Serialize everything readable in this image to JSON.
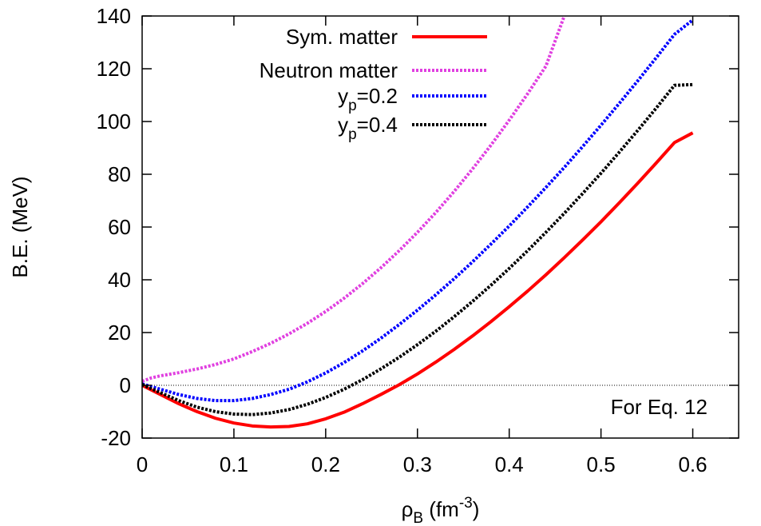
{
  "chart_data": {
    "type": "line",
    "title": "",
    "xlabel": {
      "main": "ρ",
      "sub": "B",
      "unit_prefix": " (fm",
      "sup": "-3",
      "unit_suffix": ")"
    },
    "ylabel": "B.E. (MeV)",
    "xlim": [
      0,
      0.65
    ],
    "ylim": [
      -20,
      140
    ],
    "xticks": [
      0,
      0.1,
      0.2,
      0.3,
      0.4,
      0.5,
      0.6
    ],
    "xtick_labels": [
      "0",
      "0.1",
      "0.2",
      "0.3",
      "0.4",
      "0.5",
      "0.6"
    ],
    "yticks": [
      -20,
      0,
      20,
      40,
      60,
      80,
      100,
      120,
      140
    ],
    "ytick_labels": [
      "-20",
      "0",
      "20",
      "40",
      "60",
      "80",
      "100",
      "120",
      "140"
    ],
    "grid": false,
    "legend_position": "top-left",
    "annotation": "For Eq. 12",
    "zero_line": true,
    "series": [
      {
        "name": "Sym. matter",
        "legend": {
          "main": "Sym. matter"
        },
        "color": "#ff0000",
        "style": "solid",
        "x": [
          0,
          0.02,
          0.04,
          0.06,
          0.08,
          0.1,
          0.12,
          0.14,
          0.16,
          0.18,
          0.2,
          0.22,
          0.24,
          0.26,
          0.28,
          0.3,
          0.32,
          0.34,
          0.36,
          0.38,
          0.4,
          0.42,
          0.44,
          0.46,
          0.48,
          0.5,
          0.52,
          0.54,
          0.56,
          0.58,
          0.6
        ],
        "y": [
          0,
          -3.5,
          -7,
          -10,
          -12.5,
          -14.3,
          -15.4,
          -15.8,
          -15.6,
          -14.6,
          -12.7,
          -10.2,
          -7,
          -3.5,
          0.2,
          4.3,
          8.8,
          13.6,
          18.7,
          24.1,
          29.8,
          35.7,
          41.9,
          48.4,
          55.1,
          62,
          69.2,
          76.6,
          84.2,
          92,
          95.7
        ]
      },
      {
        "name": "Neutron matter",
        "legend": {
          "main": "Neutron matter"
        },
        "color": "#e040e0",
        "style": "dotted",
        "x": [
          0,
          0.01,
          0.02,
          0.04,
          0.06,
          0.08,
          0.1,
          0.12,
          0.14,
          0.16,
          0.18,
          0.2,
          0.22,
          0.24,
          0.26,
          0.28,
          0.3,
          0.32,
          0.34,
          0.36,
          0.38,
          0.4,
          0.42,
          0.44,
          0.46
        ],
        "y": [
          1.5,
          2.8,
          3.6,
          4.8,
          6.2,
          7.9,
          10,
          12.8,
          15.9,
          19.5,
          23.5,
          28,
          33,
          38.5,
          44.5,
          51,
          58,
          65.5,
          73.5,
          82,
          91,
          100.5,
          110.5,
          121,
          140
        ]
      },
      {
        "name": "yp=0.2",
        "legend": {
          "main": "y",
          "sub": "p",
          "rest": "=0.2"
        },
        "color": "#0000ff",
        "style": "dotted",
        "x": [
          0,
          0.02,
          0.04,
          0.06,
          0.08,
          0.1,
          0.12,
          0.14,
          0.16,
          0.18,
          0.2,
          0.22,
          0.24,
          0.26,
          0.28,
          0.3,
          0.32,
          0.34,
          0.36,
          0.38,
          0.4,
          0.42,
          0.44,
          0.46,
          0.48,
          0.5,
          0.52,
          0.54,
          0.56,
          0.58,
          0.6
        ],
        "y": [
          0.5,
          -1.5,
          -3.5,
          -5,
          -5.8,
          -5.8,
          -5,
          -3.5,
          -1.5,
          1.3,
          4.7,
          8.6,
          13,
          17.8,
          23,
          28.5,
          34.3,
          40.4,
          46.8,
          53.5,
          60.4,
          67.6,
          75,
          82.6,
          90.5,
          98.6,
          106.9,
          115.4,
          124.1,
          133,
          138.5
        ]
      },
      {
        "name": "yp=0.4",
        "legend": {
          "main": "y",
          "sub": "p",
          "rest": "=0.4"
        },
        "color": "#000000",
        "style": "dotted",
        "x": [
          0,
          0.02,
          0.04,
          0.06,
          0.08,
          0.1,
          0.12,
          0.14,
          0.16,
          0.18,
          0.2,
          0.22,
          0.24,
          0.26,
          0.28,
          0.3,
          0.32,
          0.34,
          0.36,
          0.38,
          0.4,
          0.42,
          0.44,
          0.46,
          0.48,
          0.5,
          0.52,
          0.54,
          0.56,
          0.58,
          0.6
        ],
        "y": [
          0.3,
          -2.8,
          -5.8,
          -8.3,
          -10,
          -10.9,
          -11.1,
          -10.5,
          -9.2,
          -7.2,
          -4.6,
          -1.5,
          2.1,
          6.2,
          10.6,
          15.4,
          20.5,
          26,
          31.8,
          37.9,
          44.3,
          51,
          58,
          65.2,
          72.7,
          80.4,
          88.4,
          96.6,
          105,
          113.7,
          114
        ]
      }
    ]
  }
}
